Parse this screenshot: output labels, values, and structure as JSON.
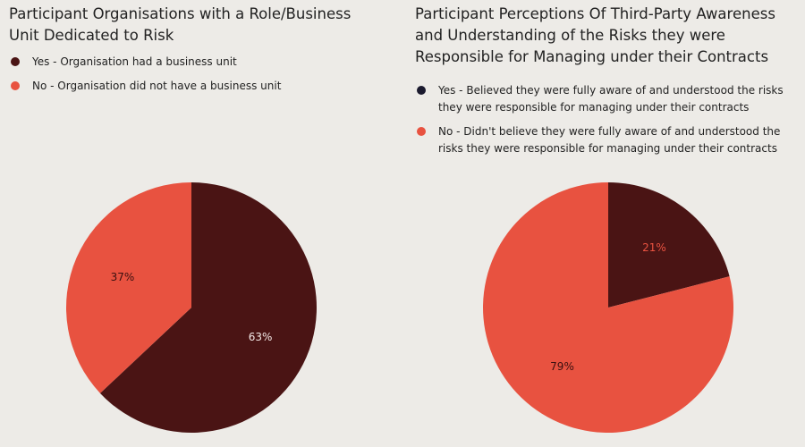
{
  "chart_data": [
    {
      "type": "pie",
      "title": "Participant Organisations with a Role/Business Unit Dedicated to Risk",
      "categories": [
        "Yes - Organisation had a business unit",
        "No - Organisation did not have a business unit"
      ],
      "values": [
        63,
        37
      ],
      "value_labels": [
        "63%",
        "37%"
      ],
      "colors": [
        "#4a1414",
        "#e85240"
      ],
      "legend_colors": [
        "#4a1414",
        "#e85240"
      ]
    },
    {
      "type": "pie",
      "title": "Participant Perceptions Of Third-Party Awareness and Understanding of the Risks they were Responsible for Managing under their Contracts",
      "categories": [
        "Yes - Believed they were fully aware of and understood the risks they were responsible for managing under their contracts",
        "No - Didn't believe they were fully aware of and understood the risks they were responsible for managing under their contracts"
      ],
      "values": [
        21,
        79
      ],
      "value_labels": [
        "21%",
        "79%"
      ],
      "colors": [
        "#4a1414",
        "#e85240"
      ],
      "legend_colors": [
        "#1b1a2e",
        "#e85240"
      ]
    }
  ]
}
